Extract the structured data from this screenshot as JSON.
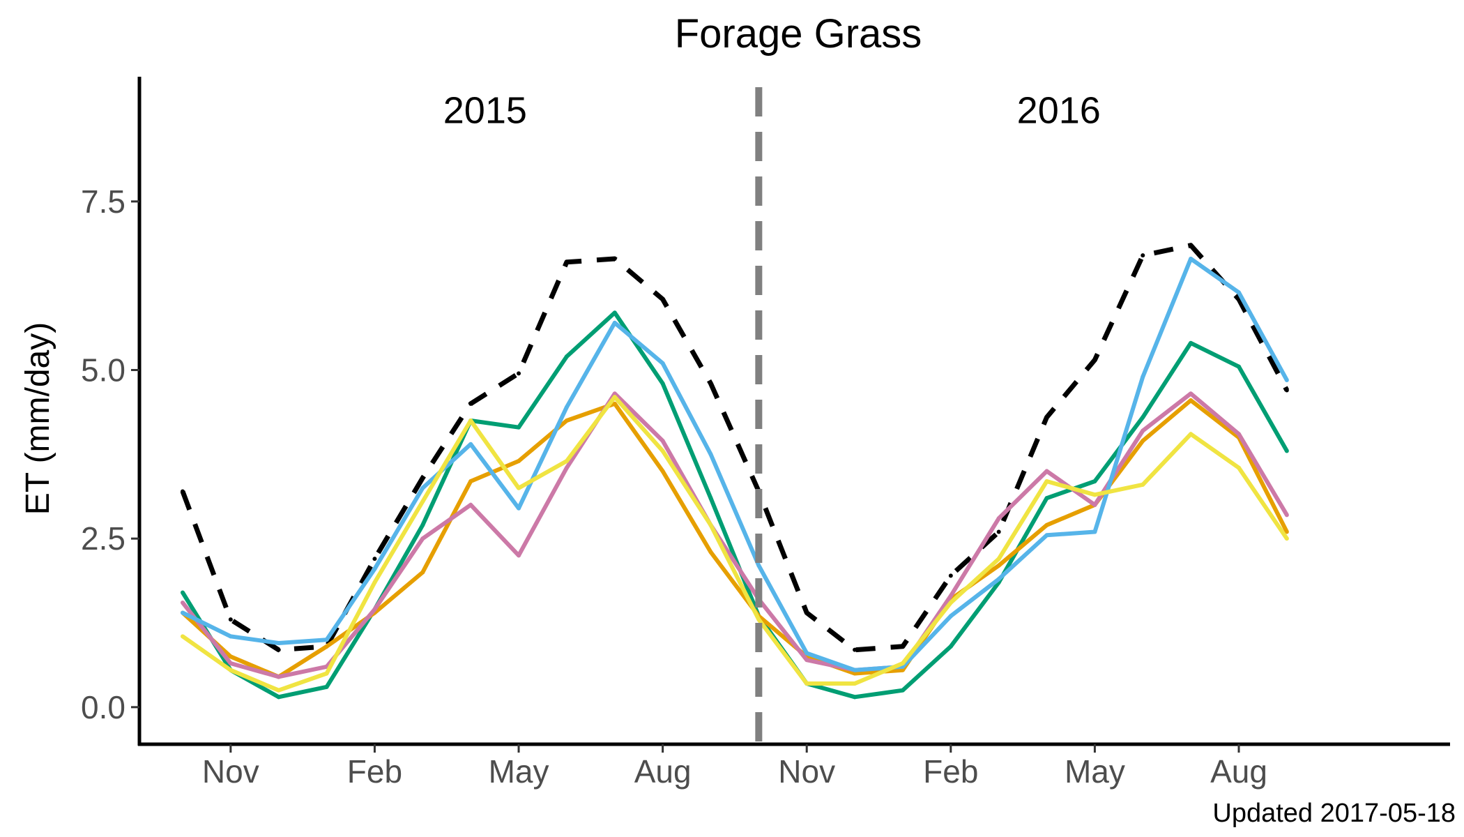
{
  "chart_data": {
    "type": "line",
    "title": "Forage Grass",
    "xlabel": "",
    "ylabel": "ET (mm/day)",
    "ylim": [
      -0.55,
      9.35
    ],
    "xlim": [
      -0.9,
      26.4
    ],
    "x_ticks": [
      {
        "x": 1,
        "label": "Nov"
      },
      {
        "x": 4,
        "label": "Feb"
      },
      {
        "x": 7,
        "label": "May"
      },
      {
        "x": 10,
        "label": "Aug"
      },
      {
        "x": 13,
        "label": "Nov"
      },
      {
        "x": 16,
        "label": "Feb"
      },
      {
        "x": 19,
        "label": "May"
      },
      {
        "x": 22,
        "label": "Aug"
      }
    ],
    "y_ticks": [
      {
        "y": 0,
        "label": "0.0"
      },
      {
        "y": 2.5,
        "label": "2.5"
      },
      {
        "y": 5,
        "label": "5.0"
      },
      {
        "y": 7.5,
        "label": "7.5"
      }
    ],
    "annotations": [
      {
        "text": "2015",
        "x": 6.3,
        "y": 8.85
      },
      {
        "text": "2016",
        "x": 18.25,
        "y": 8.85
      }
    ],
    "vline": {
      "x": 12,
      "color": "#808080",
      "style": "dashed"
    },
    "x": [
      0,
      1,
      2,
      3,
      4,
      5,
      6,
      7,
      8,
      9,
      10,
      11,
      12,
      13,
      14,
      15,
      16,
      17,
      18,
      19,
      20,
      21,
      22,
      23
    ],
    "series": [
      {
        "name": "black dashed",
        "color": "#000000",
        "dashed": true,
        "values": [
          3.2,
          1.3,
          0.85,
          0.9,
          2.2,
          3.4,
          4.5,
          4.95,
          6.6,
          6.65,
          6.05,
          4.8,
          3.2,
          1.4,
          0.85,
          0.9,
          1.95,
          2.6,
          4.3,
          5.15,
          6.7,
          6.85,
          6.05,
          4.7
        ]
      },
      {
        "name": "green",
        "color": "#009E73",
        "dashed": false,
        "values": [
          1.7,
          0.55,
          0.15,
          0.3,
          1.45,
          2.7,
          4.25,
          4.15,
          5.2,
          5.85,
          4.8,
          3.1,
          1.35,
          0.35,
          0.15,
          0.25,
          0.9,
          1.85,
          3.1,
          3.35,
          4.3,
          5.4,
          5.05,
          3.8
        ]
      },
      {
        "name": "orange",
        "color": "#E69F00",
        "dashed": false,
        "values": [
          1.4,
          0.75,
          0.45,
          0.9,
          1.4,
          2.0,
          3.35,
          3.65,
          4.25,
          4.5,
          3.5,
          2.3,
          1.35,
          0.75,
          0.5,
          0.55,
          1.6,
          2.1,
          2.7,
          3.0,
          3.95,
          4.55,
          4.0,
          2.6
        ]
      },
      {
        "name": "pink",
        "color": "#CC79A7",
        "dashed": false,
        "values": [
          1.55,
          0.65,
          0.45,
          0.6,
          1.45,
          2.5,
          3.0,
          2.25,
          3.55,
          4.65,
          3.95,
          2.7,
          1.6,
          0.7,
          0.55,
          0.6,
          1.65,
          2.8,
          3.5,
          3.0,
          4.1,
          4.65,
          4.05,
          2.85
        ]
      },
      {
        "name": "sky blue",
        "color": "#56B4E9",
        "dashed": false,
        "values": [
          1.4,
          1.05,
          0.95,
          1.0,
          2.05,
          3.25,
          3.9,
          2.95,
          4.45,
          5.7,
          5.1,
          3.75,
          2.1,
          0.8,
          0.55,
          0.6,
          1.35,
          1.9,
          2.55,
          2.6,
          4.9,
          6.65,
          6.15,
          4.85
        ]
      },
      {
        "name": "yellow",
        "color": "#F0E442",
        "dashed": false,
        "values": [
          1.05,
          0.55,
          0.25,
          0.5,
          1.85,
          3.05,
          4.25,
          3.25,
          3.65,
          4.6,
          3.8,
          2.7,
          1.3,
          0.35,
          0.35,
          0.65,
          1.55,
          2.2,
          3.35,
          3.15,
          3.3,
          4.05,
          3.55,
          2.5
        ]
      }
    ]
  },
  "footer": {
    "updated_text": "Updated  2017-05-18"
  }
}
